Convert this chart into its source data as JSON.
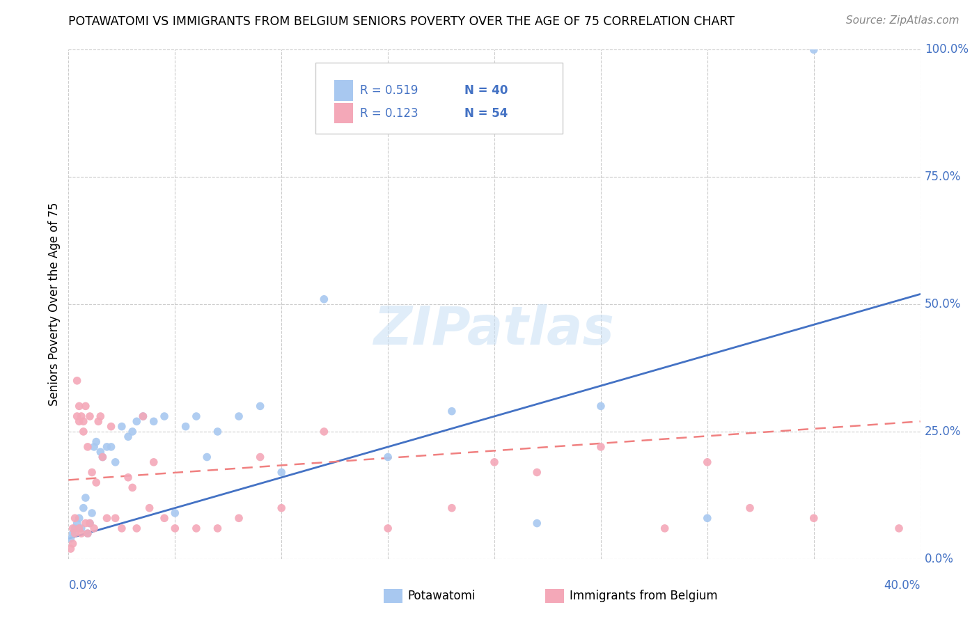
{
  "title": "POTAWATOMI VS IMMIGRANTS FROM BELGIUM SENIORS POVERTY OVER THE AGE OF 75 CORRELATION CHART",
  "source": "Source: ZipAtlas.com",
  "ylabel": "Seniors Poverty Over the Age of 75",
  "ytick_labels": [
    "0.0%",
    "25.0%",
    "50.0%",
    "75.0%",
    "100.0%"
  ],
  "ytick_values": [
    0.0,
    0.25,
    0.5,
    0.75,
    1.0
  ],
  "xlim": [
    0.0,
    0.4
  ],
  "ylim": [
    0.0,
    1.0
  ],
  "legend_R1": "R = 0.519",
  "legend_N1": "N = 40",
  "legend_R2": "R = 0.123",
  "legend_N2": "N = 54",
  "color_potawatomi": "#a8c8f0",
  "color_belgium": "#f4a8b8",
  "color_line1": "#4472c4",
  "color_line2": "#f08080",
  "watermark_color": "#ddeeff",
  "potawatomi_x": [
    0.001,
    0.002,
    0.003,
    0.004,
    0.005,
    0.006,
    0.007,
    0.008,
    0.009,
    0.01,
    0.011,
    0.012,
    0.013,
    0.015,
    0.016,
    0.018,
    0.02,
    0.022,
    0.025,
    0.028,
    0.03,
    0.032,
    0.035,
    0.04,
    0.045,
    0.05,
    0.055,
    0.06,
    0.065,
    0.07,
    0.08,
    0.09,
    0.1,
    0.12,
    0.15,
    0.18,
    0.22,
    0.25,
    0.3,
    0.35
  ],
  "potawatomi_y": [
    0.04,
    0.05,
    0.06,
    0.07,
    0.08,
    0.06,
    0.1,
    0.12,
    0.05,
    0.07,
    0.09,
    0.22,
    0.23,
    0.21,
    0.2,
    0.22,
    0.22,
    0.19,
    0.26,
    0.24,
    0.25,
    0.27,
    0.28,
    0.27,
    0.28,
    0.09,
    0.26,
    0.28,
    0.2,
    0.25,
    0.28,
    0.3,
    0.17,
    0.51,
    0.2,
    0.29,
    0.07,
    0.3,
    0.08,
    1.0
  ],
  "belgium_x": [
    0.001,
    0.002,
    0.002,
    0.003,
    0.003,
    0.004,
    0.004,
    0.005,
    0.005,
    0.005,
    0.006,
    0.006,
    0.007,
    0.007,
    0.008,
    0.008,
    0.009,
    0.009,
    0.01,
    0.01,
    0.011,
    0.012,
    0.013,
    0.014,
    0.015,
    0.016,
    0.018,
    0.02,
    0.022,
    0.025,
    0.028,
    0.03,
    0.032,
    0.035,
    0.038,
    0.04,
    0.045,
    0.05,
    0.06,
    0.07,
    0.08,
    0.09,
    0.1,
    0.12,
    0.15,
    0.18,
    0.2,
    0.22,
    0.25,
    0.28,
    0.3,
    0.32,
    0.35,
    0.39
  ],
  "belgium_y": [
    0.02,
    0.03,
    0.06,
    0.05,
    0.08,
    0.35,
    0.28,
    0.27,
    0.06,
    0.3,
    0.28,
    0.05,
    0.27,
    0.25,
    0.07,
    0.3,
    0.22,
    0.05,
    0.07,
    0.28,
    0.17,
    0.06,
    0.15,
    0.27,
    0.28,
    0.2,
    0.08,
    0.26,
    0.08,
    0.06,
    0.16,
    0.14,
    0.06,
    0.28,
    0.1,
    0.19,
    0.08,
    0.06,
    0.06,
    0.06,
    0.08,
    0.2,
    0.1,
    0.25,
    0.06,
    0.1,
    0.19,
    0.17,
    0.22,
    0.06,
    0.19,
    0.1,
    0.08,
    0.06
  ],
  "trendline1_x": [
    0.0,
    0.4
  ],
  "trendline1_y": [
    0.04,
    0.52
  ],
  "trendline2_x": [
    0.0,
    0.4
  ],
  "trendline2_y": [
    0.155,
    0.27
  ]
}
